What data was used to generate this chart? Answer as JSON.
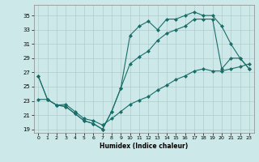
{
  "xlabel": "Humidex (Indice chaleur)",
  "bg_color": "#cce8e8",
  "grid_color": "#b0cccc",
  "line_color": "#1a6e6a",
  "xlim": [
    -0.5,
    23.5
  ],
  "ylim": [
    18.5,
    36.5
  ],
  "xticks": [
    0,
    1,
    2,
    3,
    4,
    5,
    6,
    7,
    8,
    9,
    10,
    11,
    12,
    13,
    14,
    15,
    16,
    17,
    18,
    19,
    20,
    21,
    22,
    23
  ],
  "yticks": [
    19,
    21,
    23,
    25,
    27,
    29,
    31,
    33,
    35
  ],
  "series1_x": [
    0,
    1,
    2,
    3,
    4,
    5,
    6,
    7,
    8,
    9,
    10,
    11,
    12,
    13,
    14,
    15,
    16,
    17,
    18,
    19,
    20,
    21,
    22,
    23
  ],
  "series1_y": [
    26.5,
    23.2,
    22.4,
    22.2,
    21.2,
    20.2,
    19.8,
    19.0,
    21.5,
    24.8,
    32.2,
    33.5,
    34.2,
    33.0,
    34.5,
    34.5,
    35.0,
    35.5,
    35.0,
    35.0,
    33.5,
    31.0,
    29.0,
    27.5
  ],
  "series2_x": [
    0,
    1,
    2,
    3,
    4,
    5,
    6,
    7,
    8,
    9,
    10,
    11,
    12,
    13,
    14,
    15,
    16,
    17,
    18,
    19,
    20,
    21,
    22,
    23
  ],
  "series2_y": [
    26.5,
    23.2,
    22.4,
    22.2,
    21.2,
    20.2,
    19.8,
    19.0,
    21.5,
    24.8,
    28.2,
    29.2,
    30.0,
    31.5,
    32.5,
    33.0,
    33.5,
    34.5,
    34.5,
    34.5,
    27.5,
    29.0,
    29.0,
    27.5
  ],
  "series3_x": [
    0,
    1,
    2,
    3,
    4,
    5,
    6,
    7,
    8,
    9,
    10,
    11,
    12,
    13,
    14,
    15,
    16,
    17,
    18,
    19,
    20,
    21,
    22,
    23
  ],
  "series3_y": [
    23.2,
    23.2,
    22.4,
    22.5,
    21.5,
    20.5,
    20.2,
    19.6,
    20.5,
    21.5,
    22.5,
    23.1,
    23.6,
    24.5,
    25.2,
    26.0,
    26.5,
    27.2,
    27.5,
    27.2,
    27.2,
    27.5,
    27.8,
    28.2
  ]
}
